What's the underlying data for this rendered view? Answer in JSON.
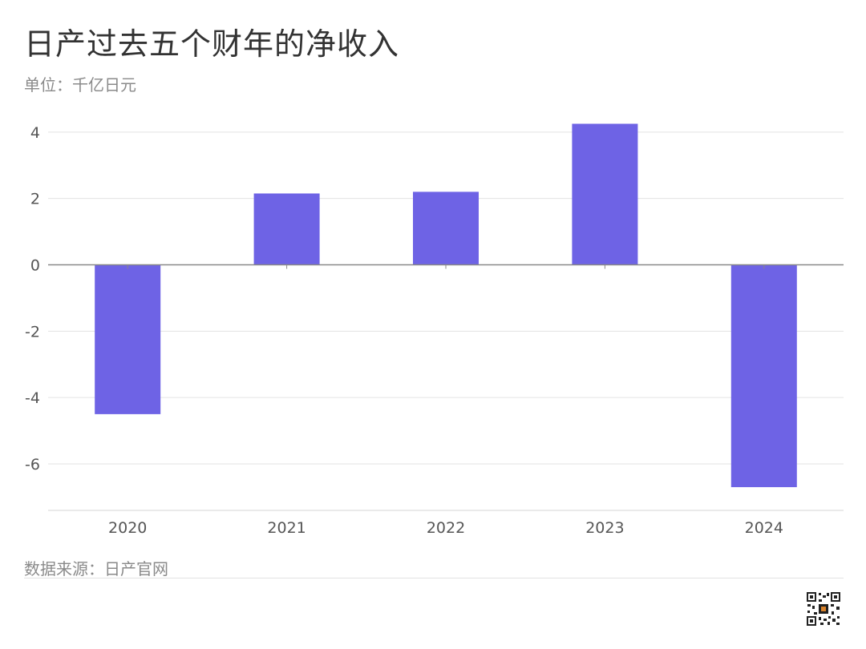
{
  "page": {
    "title": "日产过去五个财年的净收入",
    "subtitle": "单位：千亿日元",
    "source": "数据来源：日产官网"
  },
  "chart_data": {
    "type": "bar",
    "title": "日产过去五个财年的净收入",
    "subtitle": "单位：千亿日元",
    "categories": [
      "2020",
      "2021",
      "2022",
      "2023",
      "2024"
    ],
    "values": [
      -4.5,
      2.15,
      2.2,
      4.25,
      -6.7
    ],
    "ylim": [
      -7.4,
      4.6
    ],
    "yticks": [
      4,
      2,
      0,
      -2,
      -4,
      -6
    ],
    "ytick_labels": [
      "4",
      "2",
      "0",
      "-2",
      "-4",
      "-6"
    ],
    "grid": true,
    "legend": "none"
  },
  "colors": {
    "bar": "#6e63e5",
    "grid": "#e3e3e3",
    "zero_line": "#888888",
    "axis_text": "#555555"
  },
  "icons": {
    "qr": "qr-code-icon"
  }
}
